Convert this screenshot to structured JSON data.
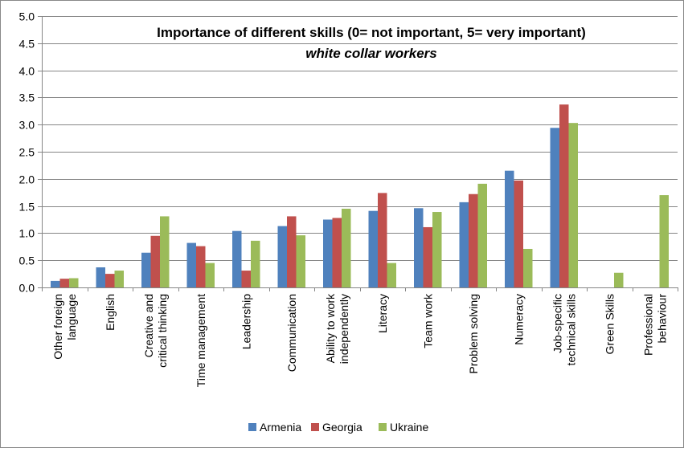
{
  "chart_data": {
    "type": "bar",
    "title": "Importance of different skills (0= not important, 5= very important)",
    "subtitle": "white collar workers",
    "xlabel": "",
    "ylabel": "",
    "ylim": [
      0,
      5
    ],
    "y_ticks": [
      "0.0",
      "0.5",
      "1.0",
      "1.5",
      "2.0",
      "2.5",
      "3.0",
      "3.5",
      "4.0",
      "4.5",
      "5.0"
    ],
    "grid": true,
    "legend_position": "bottom",
    "categories": [
      [
        "Other foreign",
        "language"
      ],
      [
        "English"
      ],
      [
        "Creative and",
        "critical thinking"
      ],
      [
        "Time management"
      ],
      [
        "Leadership"
      ],
      [
        "Communication"
      ],
      [
        "Ability to work",
        "independently"
      ],
      [
        "Literacy"
      ],
      [
        "Team work"
      ],
      [
        "Problem solving"
      ],
      [
        "Numeracy"
      ],
      [
        "Job-specific",
        "technical skills"
      ],
      [
        "Green Skills"
      ],
      [
        "Professional",
        "behaviour"
      ]
    ],
    "series": [
      {
        "name": "Armenia",
        "color": "#4F81BD",
        "values": [
          0.12,
          0.37,
          0.64,
          0.82,
          1.04,
          1.13,
          1.25,
          1.41,
          1.46,
          1.57,
          2.15,
          2.94,
          0,
          0
        ]
      },
      {
        "name": "Georgia",
        "color": "#C0504D",
        "values": [
          0.16,
          0.25,
          0.95,
          0.76,
          0.31,
          1.31,
          1.28,
          1.74,
          1.11,
          1.72,
          1.97,
          3.37,
          0,
          0
        ]
      },
      {
        "name": "Ukraine",
        "color": "#9BBB59",
        "values": [
          0.17,
          0.31,
          1.31,
          0.45,
          0.86,
          0.96,
          1.45,
          0.45,
          1.39,
          1.91,
          0.71,
          3.03,
          0.27,
          1.7
        ]
      }
    ]
  }
}
